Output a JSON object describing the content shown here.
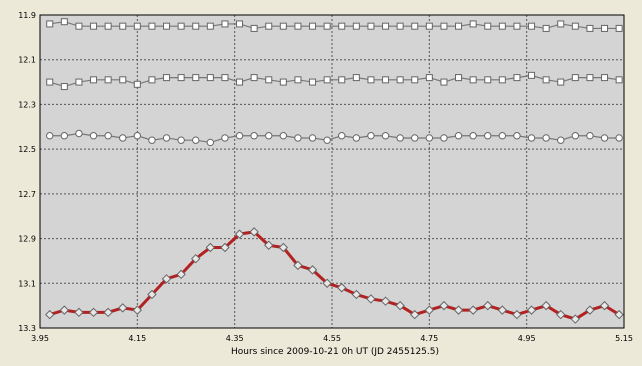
{
  "chart_data": {
    "type": "line",
    "title": "",
    "xlabel": "Hours since 2009-10-21 0h UT (JD 2455125.5)",
    "ylabel": "",
    "xlim": [
      3.95,
      5.15
    ],
    "ylim": [
      13.3,
      11.9
    ],
    "y_inverted": true,
    "grid": true,
    "xticks": [
      "3.95",
      "4.15",
      "4.35",
      "4.55",
      "4.75",
      "4.95",
      "5.15"
    ],
    "yticks": [
      "11.9",
      "12.1",
      "12.3",
      "12.5",
      "12.7",
      "12.9",
      "13.1",
      "13.3"
    ],
    "x": [
      3.97,
      4.0,
      4.03,
      4.06,
      4.09,
      4.12,
      4.15,
      4.18,
      4.21,
      4.24,
      4.27,
      4.3,
      4.33,
      4.36,
      4.39,
      4.42,
      4.45,
      4.48,
      4.51,
      4.54,
      4.57,
      4.6,
      4.63,
      4.66,
      4.69,
      4.72,
      4.75,
      4.78,
      4.81,
      4.84,
      4.87,
      4.9,
      4.93,
      4.96,
      4.99,
      5.02,
      5.05,
      5.08,
      5.11,
      5.14
    ],
    "series": [
      {
        "color": "#777777",
        "marker": "square",
        "values": [
          11.94,
          11.93,
          11.95,
          11.95,
          11.95,
          11.95,
          11.95,
          11.95,
          11.95,
          11.95,
          11.95,
          11.95,
          11.94,
          11.94,
          11.96,
          11.95,
          11.95,
          11.95,
          11.95,
          11.95,
          11.95,
          11.95,
          11.95,
          11.95,
          11.95,
          11.95,
          11.95,
          11.95,
          11.95,
          11.94,
          11.95,
          11.95,
          11.95,
          11.95,
          11.96,
          11.94,
          11.95,
          11.96,
          11.96,
          11.96
        ]
      },
      {
        "color": "#777777",
        "marker": "square",
        "values": [
          12.2,
          12.22,
          12.2,
          12.19,
          12.19,
          12.19,
          12.21,
          12.19,
          12.18,
          12.18,
          12.18,
          12.18,
          12.18,
          12.2,
          12.18,
          12.19,
          12.2,
          12.19,
          12.2,
          12.19,
          12.19,
          12.18,
          12.19,
          12.19,
          12.19,
          12.19,
          12.18,
          12.2,
          12.18,
          12.19,
          12.19,
          12.19,
          12.18,
          12.17,
          12.19,
          12.2,
          12.18,
          12.18,
          12.18,
          12.19
        ]
      },
      {
        "color": "#777777",
        "marker": "circle",
        "values": [
          12.44,
          12.44,
          12.43,
          12.44,
          12.44,
          12.45,
          12.44,
          12.46,
          12.45,
          12.46,
          12.46,
          12.47,
          12.45,
          12.44,
          12.44,
          12.44,
          12.44,
          12.45,
          12.45,
          12.46,
          12.44,
          12.45,
          12.44,
          12.44,
          12.45,
          12.45,
          12.45,
          12.45,
          12.44,
          12.44,
          12.44,
          12.44,
          12.44,
          12.45,
          12.45,
          12.46,
          12.44,
          12.44,
          12.45,
          12.45
        ]
      },
      {
        "color": "#b22222",
        "marker": "diamond",
        "values": [
          13.24,
          13.22,
          13.23,
          13.23,
          13.23,
          13.21,
          13.22,
          13.15,
          13.08,
          13.06,
          12.99,
          12.94,
          12.94,
          12.88,
          12.87,
          12.93,
          12.94,
          13.02,
          13.04,
          13.1,
          13.12,
          13.15,
          13.17,
          13.18,
          13.2,
          13.24,
          13.22,
          13.2,
          13.22,
          13.22,
          13.2,
          13.22,
          13.24,
          13.22,
          13.2,
          13.24,
          13.26,
          13.22,
          13.2,
          13.24
        ]
      }
    ]
  }
}
